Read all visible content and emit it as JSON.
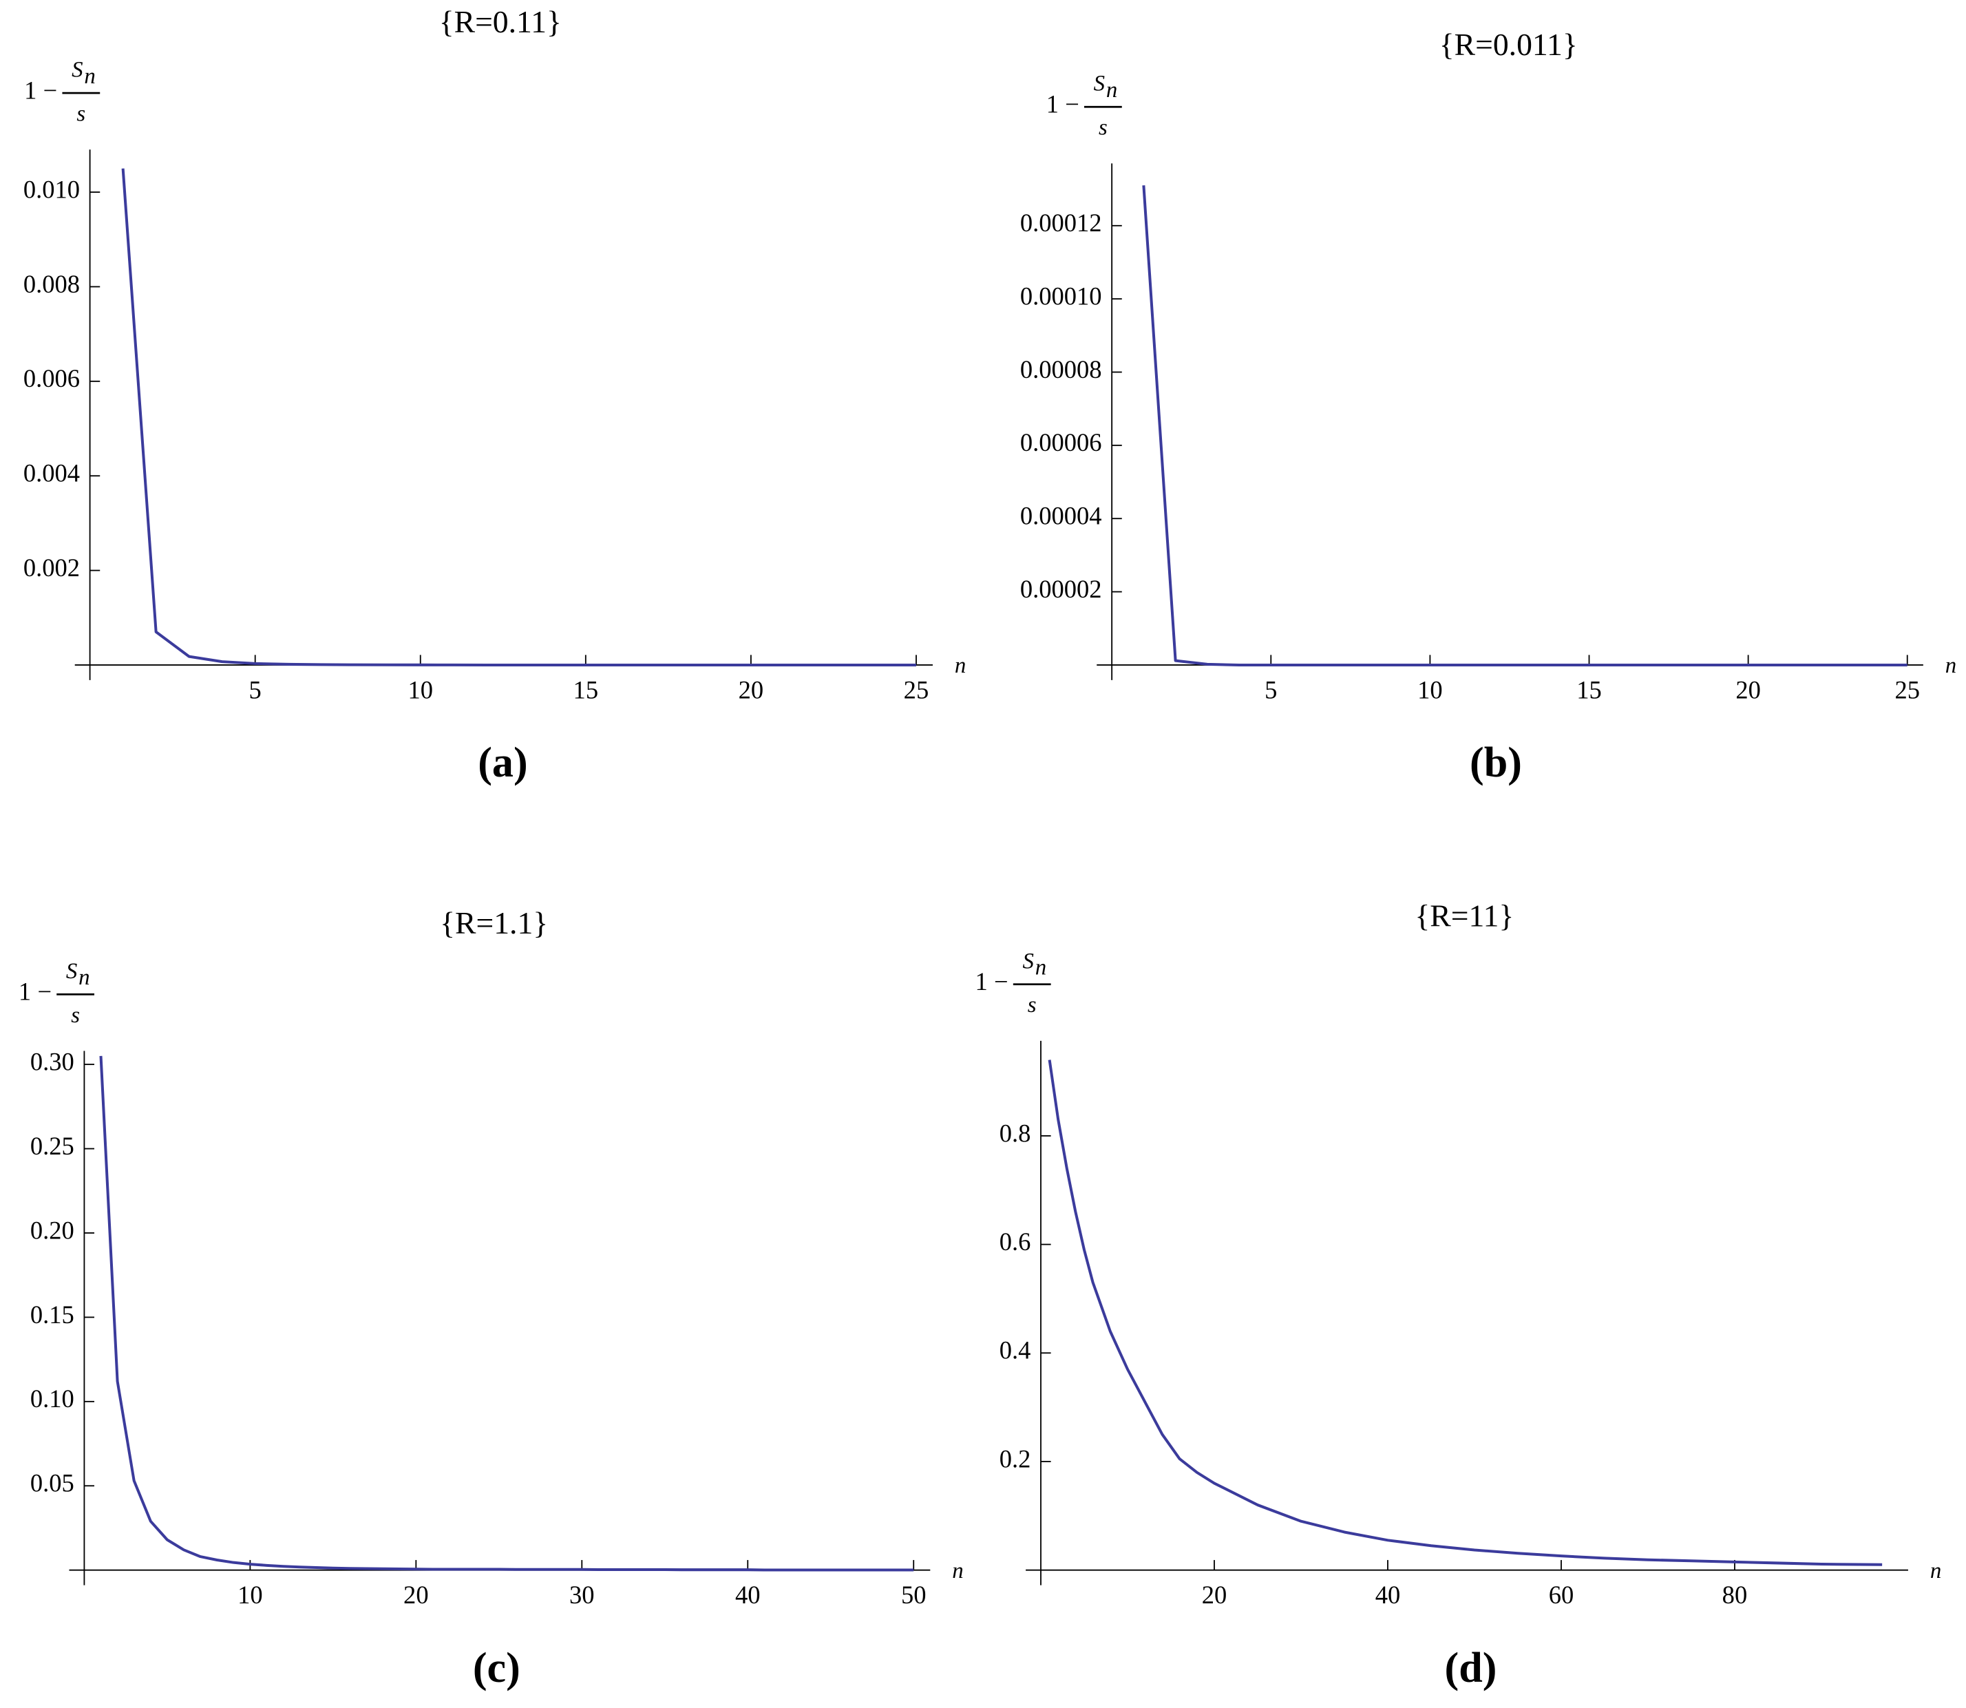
{
  "chart_data": [
    {
      "type": "line",
      "title": "{R=0.11}",
      "caption": "(a)",
      "y_label_parts": [
        "1 −",
        "S",
        "n",
        "s"
      ],
      "x_label": "n",
      "series": [
        {
          "color": "#3b3b9c",
          "x": [
            1,
            2,
            3,
            4,
            5,
            6,
            7,
            8,
            9,
            10,
            11,
            12,
            13,
            14,
            15,
            16,
            17,
            18,
            19,
            20,
            21,
            22,
            23,
            24,
            25
          ],
          "values": [
            0.0105,
            0.0007,
            0.00018,
            7e-05,
            3e-05,
            1.5e-05,
            8e-06,
            5e-06,
            3e-06,
            2e-06,
            1e-06,
            0,
            0,
            0,
            0,
            0,
            0,
            0,
            0,
            0,
            0,
            0,
            0,
            0,
            0
          ]
        }
      ],
      "xlim": [
        0,
        25.5
      ],
      "ylim": [
        0,
        0.0109
      ],
      "xticks": [
        5,
        10,
        15,
        20,
        25
      ],
      "yticks": [
        0.002,
        0.004,
        0.006,
        0.008,
        {
          "value": 0.01,
          "label": "0.010"
        }
      ]
    },
    {
      "type": "line",
      "title": "{R=0.011}",
      "caption": "(b)",
      "y_label_parts": [
        "1 −",
        "S",
        "n",
        "s"
      ],
      "x_label": "n",
      "series": [
        {
          "color": "#3b3b9c",
          "x": [
            1,
            2,
            3,
            4,
            5,
            6,
            7,
            8,
            9,
            10,
            11,
            12,
            13,
            14,
            15,
            16,
            17,
            18,
            19,
            20,
            21,
            22,
            23,
            24,
            25
          ],
          "values": [
            0.000131,
            1.2e-06,
            2e-07,
            0,
            0,
            0,
            0,
            0,
            0,
            0,
            0,
            0,
            0,
            0,
            0,
            0,
            0,
            0,
            0,
            0,
            0,
            0,
            0,
            0,
            0
          ]
        }
      ],
      "xlim": [
        0,
        25.5
      ],
      "ylim": [
        0,
        0.000137
      ],
      "xticks": [
        5,
        10,
        15,
        20,
        25
      ],
      "yticks": [
        {
          "value": 2e-05,
          "label": "0.00002"
        },
        {
          "value": 4e-05,
          "label": "0.00004"
        },
        {
          "value": 6e-05,
          "label": "0.00006"
        },
        {
          "value": 8e-05,
          "label": "0.00008"
        },
        {
          "value": 0.0001,
          "label": "0.00010"
        },
        {
          "value": 0.00012,
          "label": "0.00012"
        }
      ]
    },
    {
      "type": "line",
      "title": "{R=1.1}",
      "caption": "(c)",
      "y_label_parts": [
        "1 −",
        "S",
        "n",
        "s"
      ],
      "x_label": "n",
      "series": [
        {
          "color": "#3b3b9c",
          "x": [
            1,
            2,
            3,
            4,
            5,
            6,
            7,
            8,
            9,
            10,
            11,
            12,
            13,
            14,
            15,
            16,
            17,
            18,
            19,
            20,
            21,
            22,
            23,
            24,
            25,
            26,
            27,
            28,
            29,
            30,
            31,
            32,
            33,
            34,
            35,
            36,
            37,
            38,
            39,
            40,
            41,
            42,
            43,
            44,
            45,
            46,
            47,
            48,
            49,
            50
          ],
          "values": [
            0.305,
            0.112,
            0.053,
            0.029,
            0.018,
            0.012,
            0.008,
            0.006,
            0.0045,
            0.0035,
            0.0028,
            0.0022,
            0.0018,
            0.0015,
            0.0012,
            0.001,
            0.0009,
            0.0008,
            0.0007,
            0.0006,
            0.0005,
            0.0005,
            0.0005,
            0.0005,
            0.0005,
            0.0004,
            0.0004,
            0.0004,
            0.0004,
            0.0004,
            0.0003,
            0.0003,
            0.0003,
            0.0003,
            0.0003,
            0.0002,
            0.0002,
            0.0002,
            0.0002,
            0.0002,
            0.0001,
            0.0001,
            0.0001,
            0.0001,
            0.0001,
            0.0001,
            0.0001,
            0.0001,
            0.0001,
            0.0001
          ]
        }
      ],
      "xlim": [
        0,
        51
      ],
      "ylim": [
        0,
        0.308
      ],
      "xticks": [
        10,
        20,
        30,
        40,
        50
      ],
      "yticks": [
        0.05,
        {
          "value": 0.1,
          "label": "0.10"
        },
        0.15,
        {
          "value": 0.2,
          "label": "0.20"
        },
        0.25,
        {
          "value": 0.3,
          "label": "0.30"
        }
      ]
    },
    {
      "type": "line",
      "title": "{R=11}",
      "caption": "(d)",
      "y_label_parts": [
        "1 −",
        "S",
        "n",
        "s"
      ],
      "x_label": "n",
      "series": [
        {
          "color": "#3b3b9c",
          "x": [
            1,
            2,
            3,
            4,
            5,
            6,
            8,
            10,
            12,
            14,
            16,
            18,
            20,
            25,
            30,
            35,
            40,
            45,
            50,
            55,
            60,
            65,
            70,
            75,
            80,
            85,
            90,
            97
          ],
          "values": [
            0.94,
            0.83,
            0.74,
            0.66,
            0.59,
            0.53,
            0.44,
            0.37,
            0.31,
            0.25,
            0.205,
            0.18,
            0.16,
            0.12,
            0.09,
            0.07,
            0.055,
            0.045,
            0.037,
            0.031,
            0.026,
            0.022,
            0.019,
            0.017,
            0.015,
            0.013,
            0.011,
            0.01
          ]
        }
      ],
      "xlim": [
        0,
        100
      ],
      "ylim": [
        0,
        0.975
      ],
      "xticks": [
        20,
        40,
        60,
        80
      ],
      "yticks": [
        0.2,
        0.4,
        0.6,
        0.8
      ]
    }
  ]
}
